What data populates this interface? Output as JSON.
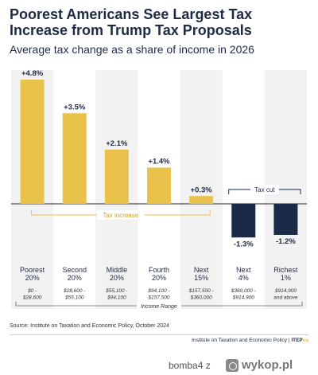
{
  "chart_data": {
    "type": "bar",
    "title": "Poorest Americans See Largest Tax Increase from Trump Tax Proposals",
    "subtitle": "Average tax change as a share of income in 2026",
    "categories": [
      "Poorest 20%",
      "Second 20%",
      "Middle 20%",
      "Fourth 20%",
      "Next 15%",
      "Next 4%",
      "Richest 1%"
    ],
    "category_lines": [
      [
        "Poorest",
        "20%"
      ],
      [
        "Second",
        "20%"
      ],
      [
        "Middle",
        "20%"
      ],
      [
        "Fourth",
        "20%"
      ],
      [
        "Next",
        "15%"
      ],
      [
        "Next",
        "4%"
      ],
      [
        "Richest",
        "1%"
      ]
    ],
    "income_ranges": [
      [
        "$0 -",
        "$28,600"
      ],
      [
        "$28,600 -",
        "$55,100"
      ],
      [
        "$55,100 -",
        "$94,100"
      ],
      [
        "$94,100 -",
        "$157,500"
      ],
      [
        "$157,500 -",
        "$360,000"
      ],
      [
        "$360,000 -",
        "$914,900"
      ],
      [
        "$914,900",
        "and above"
      ]
    ],
    "values": [
      4.8,
      3.5,
      2.1,
      1.4,
      0.3,
      -1.3,
      -1.2
    ],
    "value_labels": [
      "+4.8%",
      "+3.5%",
      "+2.1%",
      "+1.4%",
      "+0.3%",
      "-1.3%",
      "-1.2%"
    ],
    "ylim": [
      -1.7,
      4.8
    ],
    "xlabel": "Income Range",
    "annotations": {
      "increase": "Tax increase",
      "cut": "Tax cut"
    },
    "colors": {
      "increase": "#e8c24a",
      "cut": "#1b2a47",
      "band": "#f2f2f2",
      "bracket": "#e8c24a",
      "cut_bracket": "#1b2a47"
    }
  },
  "source": "Source: Institute on Taxation and Economic Policy, October 2024",
  "footer": {
    "org": "Institute on Taxation and Economic Policy",
    "brand": "ITEP",
    "brand_suffix": "org"
  },
  "watermark": {
    "user": "bomba4 z",
    "site": "wykop.pl"
  }
}
